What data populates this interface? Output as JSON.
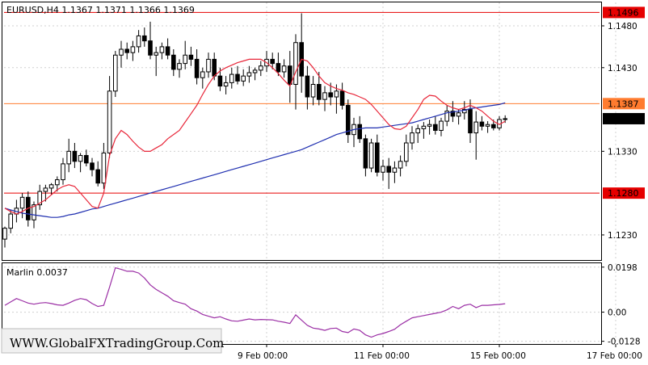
{
  "colors": {
    "background": "#ffffff",
    "candle_bull": "#ffffff",
    "candle_bear": "#000000",
    "ma_fast": "#e8273a",
    "ma_slow": "#1f2fb0",
    "level_red": "#e60000",
    "level_orange": "#ff7b2f",
    "marlin": "#9b2fa5",
    "grid": "#d0d0d0",
    "price_tag_current": "#000000",
    "price_tag_level": "#e60000"
  },
  "chart_data": [
    {
      "type": "candlestick",
      "title": "EURUSD,H4  1.1367 1.1371 1.1366 1.1369",
      "symbol": "EURUSD,H4",
      "ohlc_header": [
        "1.1367",
        "1.1371",
        "1.1366",
        "1.1369"
      ],
      "ylim": [
        1.12,
        1.1508
      ],
      "y_ticks": [
        "1.1480",
        "1.1430",
        "1.1330",
        "1.1230"
      ],
      "grid": true,
      "levels": [
        {
          "value": 1.1496,
          "label": "1.1496",
          "color": "red"
        },
        {
          "value": 1.1387,
          "label": "1.1387",
          "color": "orange"
        },
        {
          "value": 1.128,
          "label": "1.1280",
          "color": "red"
        }
      ],
      "current_price": {
        "value": 1.1369,
        "label": "1.1369"
      },
      "x_ticks": [
        {
          "index": 45,
          "label": "9 Feb 00:00"
        },
        {
          "index": 65,
          "label": "11 Feb 00:00"
        },
        {
          "index": 85,
          "label": "15 Feb 00:00"
        },
        {
          "index": 105,
          "label": "17 Feb 00:00"
        }
      ],
      "candles": [
        [
          1.1225,
          1.124,
          1.1215,
          1.1238
        ],
        [
          1.1238,
          1.126,
          1.1232,
          1.1255
        ],
        [
          1.1255,
          1.1272,
          1.1245,
          1.1262
        ],
        [
          1.1262,
          1.128,
          1.125,
          1.1275
        ],
        [
          1.1275,
          1.1282,
          1.124,
          1.1248
        ],
        [
          1.1248,
          1.127,
          1.1238,
          1.1266
        ],
        [
          1.1266,
          1.129,
          1.126,
          1.1282
        ],
        [
          1.1282,
          1.129,
          1.127,
          1.1286
        ],
        [
          1.1286,
          1.1292,
          1.1278,
          1.129
        ],
        [
          1.129,
          1.13,
          1.1282,
          1.1296
        ],
        [
          1.1296,
          1.1322,
          1.129,
          1.1315
        ],
        [
          1.1315,
          1.1345,
          1.1305,
          1.133
        ],
        [
          1.133,
          1.134,
          1.131,
          1.1318
        ],
        [
          1.1318,
          1.1328,
          1.1305,
          1.1325
        ],
        [
          1.1325,
          1.1332,
          1.1312,
          1.1316
        ],
        [
          1.1316,
          1.1322,
          1.13,
          1.1308
        ],
        [
          1.1308,
          1.1318,
          1.1288,
          1.1292
        ],
        [
          1.1292,
          1.134,
          1.1285,
          1.1328
        ],
        [
          1.1328,
          1.142,
          1.1322,
          1.1402
        ],
        [
          1.1402,
          1.145,
          1.1395,
          1.1445
        ],
        [
          1.1445,
          1.1462,
          1.143,
          1.1452
        ],
        [
          1.1452,
          1.146,
          1.144,
          1.1448
        ],
        [
          1.1448,
          1.1462,
          1.1438,
          1.1455
        ],
        [
          1.1455,
          1.1475,
          1.1448,
          1.1468
        ],
        [
          1.1468,
          1.1478,
          1.1455,
          1.1462
        ],
        [
          1.1462,
          1.1485,
          1.144,
          1.1445
        ],
        [
          1.1445,
          1.1455,
          1.142,
          1.1448
        ],
        [
          1.1448,
          1.146,
          1.144,
          1.1455
        ],
        [
          1.1455,
          1.1465,
          1.144,
          1.1445
        ],
        [
          1.1445,
          1.1452,
          1.142,
          1.1428
        ],
        [
          1.1428,
          1.144,
          1.1418,
          1.1435
        ],
        [
          1.1435,
          1.1462,
          1.1428,
          1.1445
        ],
        [
          1.1445,
          1.1455,
          1.1432,
          1.144
        ],
        [
          1.144,
          1.1452,
          1.141,
          1.1418
        ],
        [
          1.1418,
          1.143,
          1.1405,
          1.1425
        ],
        [
          1.1425,
          1.1448,
          1.1418,
          1.144
        ],
        [
          1.144,
          1.1448,
          1.1415,
          1.142
        ],
        [
          1.142,
          1.143,
          1.1402,
          1.1408
        ],
        [
          1.1408,
          1.142,
          1.1398,
          1.1412
        ],
        [
          1.1412,
          1.143,
          1.1405,
          1.1422
        ],
        [
          1.1422,
          1.1432,
          1.141,
          1.1414
        ],
        [
          1.1414,
          1.1428,
          1.1408,
          1.142
        ],
        [
          1.142,
          1.1432,
          1.1412,
          1.1424
        ],
        [
          1.1424,
          1.143,
          1.1415,
          1.1427
        ],
        [
          1.1427,
          1.1438,
          1.142,
          1.1432
        ],
        [
          1.1432,
          1.145,
          1.1425,
          1.144
        ],
        [
          1.144,
          1.1448,
          1.1428,
          1.1435
        ],
        [
          1.1435,
          1.1448,
          1.142,
          1.1425
        ],
        [
          1.1425,
          1.144,
          1.1418,
          1.1432
        ],
        [
          1.1432,
          1.145,
          1.1388,
          1.141
        ],
        [
          1.141,
          1.147,
          1.138,
          1.146
        ],
        [
          1.146,
          1.1495,
          1.14,
          1.142
        ],
        [
          1.142,
          1.1432,
          1.138,
          1.1395
        ],
        [
          1.1395,
          1.142,
          1.1385,
          1.141
        ],
        [
          1.141,
          1.1425,
          1.1385,
          1.1392
        ],
        [
          1.1392,
          1.1408,
          1.1378,
          1.14
        ],
        [
          1.14,
          1.1412,
          1.1385,
          1.1395
        ],
        [
          1.1395,
          1.141,
          1.1375,
          1.1402
        ],
        [
          1.1402,
          1.1412,
          1.138,
          1.1385
        ],
        [
          1.1385,
          1.1392,
          1.134,
          1.135
        ],
        [
          1.135,
          1.137,
          1.1335,
          1.1362
        ],
        [
          1.1362,
          1.1372,
          1.134,
          1.1345
        ],
        [
          1.1345,
          1.135,
          1.13,
          1.131
        ],
        [
          1.131,
          1.1345,
          1.1305,
          1.134
        ],
        [
          1.134,
          1.135,
          1.13,
          1.1305
        ],
        [
          1.1305,
          1.132,
          1.1295,
          1.1312
        ],
        [
          1.1312,
          1.1322,
          1.1285,
          1.1305
        ],
        [
          1.1305,
          1.1318,
          1.1292,
          1.131
        ],
        [
          1.131,
          1.1325,
          1.13,
          1.1318
        ],
        [
          1.1318,
          1.135,
          1.1312,
          1.134
        ],
        [
          1.134,
          1.136,
          1.1332,
          1.1352
        ],
        [
          1.1352,
          1.1362,
          1.134,
          1.1357
        ],
        [
          1.1357,
          1.1365,
          1.1345,
          1.136
        ],
        [
          1.136,
          1.1368,
          1.135,
          1.1362
        ],
        [
          1.1362,
          1.1372,
          1.135,
          1.1355
        ],
        [
          1.1355,
          1.137,
          1.1348,
          1.1366
        ],
        [
          1.1366,
          1.1385,
          1.136,
          1.1378
        ],
        [
          1.1378,
          1.139,
          1.1365,
          1.1372
        ],
        [
          1.1372,
          1.138,
          1.1362,
          1.1376
        ],
        [
          1.1376,
          1.139,
          1.1368,
          1.138
        ],
        [
          1.138,
          1.1392,
          1.134,
          1.1352
        ],
        [
          1.1352,
          1.1378,
          1.132,
          1.1365
        ],
        [
          1.1365,
          1.1372,
          1.1355,
          1.136
        ],
        [
          1.136,
          1.1366,
          1.1352,
          1.1362
        ],
        [
          1.1362,
          1.1368,
          1.1355,
          1.1358
        ],
        [
          1.1358,
          1.1372,
          1.1355,
          1.1368
        ],
        [
          1.1368,
          1.1373,
          1.1364,
          1.1369
        ]
      ],
      "ma_fast": [
        1.1262,
        1.1258,
        1.1255,
        1.1258,
        1.1262,
        1.1264,
        1.1268,
        1.1272,
        1.1278,
        1.1284,
        1.1288,
        1.129,
        1.1288,
        1.128,
        1.1272,
        1.1264,
        1.1262,
        1.128,
        1.1325,
        1.1345,
        1.1355,
        1.135,
        1.1342,
        1.1335,
        1.133,
        1.133,
        1.1334,
        1.1338,
        1.1345,
        1.135,
        1.1355,
        1.1365,
        1.1375,
        1.1385,
        1.1398,
        1.141,
        1.142,
        1.1426,
        1.143,
        1.1433,
        1.1436,
        1.1438,
        1.144,
        1.144,
        1.144,
        1.1436,
        1.143,
        1.1423,
        1.1415,
        1.1408,
        1.1425,
        1.144,
        1.1438,
        1.143,
        1.142,
        1.1412,
        1.1408,
        1.1405,
        1.1403,
        1.14,
        1.1398,
        1.1395,
        1.1392,
        1.1386,
        1.1378,
        1.137,
        1.1362,
        1.1357,
        1.1356,
        1.136,
        1.137,
        1.138,
        1.1392,
        1.1397,
        1.1396,
        1.139,
        1.1385,
        1.1382,
        1.138,
        1.1382,
        1.1385,
        1.1382,
        1.1378,
        1.1372,
        1.1366,
        1.1362,
        1.1366
      ],
      "ma_slow": [
        1.1262,
        1.126,
        1.1258,
        1.1256,
        1.1255,
        1.1254,
        1.1253,
        1.1252,
        1.1251,
        1.1251,
        1.1252,
        1.1254,
        1.1255,
        1.1257,
        1.1259,
        1.1261,
        1.1262,
        1.1264,
        1.1266,
        1.1268,
        1.127,
        1.1272,
        1.1274,
        1.1276,
        1.1278,
        1.128,
        1.1282,
        1.1284,
        1.1286,
        1.1288,
        1.129,
        1.1292,
        1.1294,
        1.1296,
        1.1298,
        1.13,
        1.1302,
        1.1304,
        1.1306,
        1.1308,
        1.131,
        1.1312,
        1.1314,
        1.1316,
        1.1318,
        1.132,
        1.1322,
        1.1324,
        1.1326,
        1.1328,
        1.133,
        1.1332,
        1.1335,
        1.1338,
        1.1341,
        1.1344,
        1.1347,
        1.135,
        1.1352,
        1.1354,
        1.1356,
        1.1357,
        1.1358,
        1.1358,
        1.1358,
        1.1359,
        1.136,
        1.1361,
        1.1362,
        1.1363,
        1.1364,
        1.1366,
        1.1368,
        1.137,
        1.1372,
        1.1374,
        1.1376,
        1.1377,
        1.1378,
        1.1379,
        1.1381,
        1.1382,
        1.1383,
        1.1384,
        1.1385,
        1.1386,
        1.1388
      ]
    },
    {
      "type": "line",
      "title": "Marlin 0.0037",
      "indicator": "Marlin",
      "current_value": "0.0037",
      "ylim": [
        -0.014,
        0.0215
      ],
      "y_ticks": [
        "0.0198",
        "0.00",
        "-0.0128"
      ],
      "series": [
        {
          "name": "Marlin",
          "values": [
            0.003,
            0.0045,
            0.006,
            0.005,
            0.004,
            0.0035,
            0.004,
            0.0042,
            0.0038,
            0.0032,
            0.003,
            0.004,
            0.0052,
            0.006,
            0.0055,
            0.0038,
            0.0025,
            0.003,
            0.011,
            0.0195,
            0.0188,
            0.018,
            0.018,
            0.0172,
            0.015,
            0.012,
            0.01,
            0.0085,
            0.007,
            0.005,
            0.0042,
            0.0035,
            0.0015,
            0.0005,
            -0.001,
            -0.0018,
            -0.0025,
            -0.002,
            -0.003,
            -0.0038,
            -0.004,
            -0.0035,
            -0.003,
            -0.0034,
            -0.0032,
            -0.0033,
            -0.0034,
            -0.004,
            -0.0044,
            -0.005,
            -0.0012,
            -0.0035,
            -0.0058,
            -0.007,
            -0.0074,
            -0.008,
            -0.0072,
            -0.007,
            -0.0085,
            -0.009,
            -0.0074,
            -0.008,
            -0.01,
            -0.011,
            -0.01,
            -0.0094,
            -0.0085,
            -0.0075,
            -0.0055,
            -0.004,
            -0.0025,
            -0.002,
            -0.0015,
            -0.001,
            -0.0005,
            0.0,
            0.001,
            0.0025,
            0.0015,
            0.003,
            0.0035,
            0.002,
            0.003,
            0.003,
            0.0032,
            0.0034,
            0.0037
          ]
        }
      ]
    }
  ],
  "watermark": "WWW.GlobalFXTradingGroup.Com"
}
